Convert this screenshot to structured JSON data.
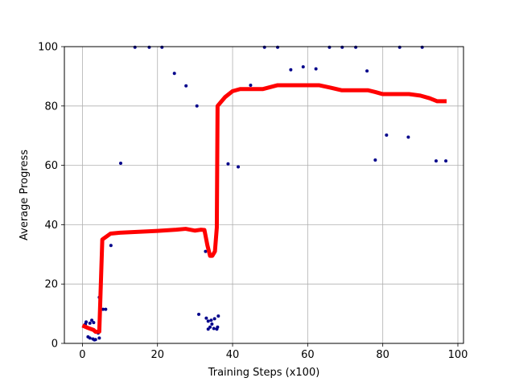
{
  "chart_data": {
    "type": "line",
    "xlabel": "Training Steps (x100)",
    "ylabel": "Average Progress",
    "xlim": [
      -4.8,
      101.5
    ],
    "ylim": [
      0,
      100
    ],
    "xticks": [
      0,
      20,
      40,
      60,
      80,
      100
    ],
    "yticks": [
      0,
      20,
      40,
      60,
      80,
      100
    ],
    "xtick_labels": [
      "0",
      "20",
      "40",
      "60",
      "80",
      "100"
    ],
    "ytick_labels": [
      "0",
      "20",
      "40",
      "60",
      "80",
      "100"
    ],
    "grid": true,
    "series": [
      {
        "style": "scatter",
        "color": "#00008b",
        "points": [
          [
            0.8,
            6.5
          ],
          [
            1.0,
            7.2
          ],
          [
            1.5,
            2.2
          ],
          [
            2.0,
            6.8
          ],
          [
            2.0,
            1.8
          ],
          [
            2.5,
            7.8
          ],
          [
            2.8,
            1.5
          ],
          [
            3.0,
            7.0
          ],
          [
            3.2,
            1.2
          ],
          [
            3.5,
            1.3
          ],
          [
            4.2,
            3.5
          ],
          [
            4.5,
            15.5
          ],
          [
            4.5,
            1.8
          ],
          [
            5.5,
            11.5
          ],
          [
            6.2,
            11.5
          ],
          [
            7.6,
            33.0
          ],
          [
            10.2,
            60.7
          ],
          [
            14.0,
            99.8
          ],
          [
            17.8,
            99.8
          ],
          [
            21.2,
            99.8
          ],
          [
            24.5,
            91.0
          ],
          [
            27.6,
            86.8
          ],
          [
            30.5,
            80.0
          ],
          [
            31.0,
            9.8
          ],
          [
            32.8,
            31.0
          ],
          [
            33.0,
            8.5
          ],
          [
            33.5,
            7.5
          ],
          [
            33.5,
            4.8
          ],
          [
            34.0,
            5.5
          ],
          [
            34.3,
            7.8
          ],
          [
            34.5,
            6.5
          ],
          [
            35.0,
            5.0
          ],
          [
            35.2,
            8.3
          ],
          [
            35.8,
            4.8
          ],
          [
            36.0,
            5.5
          ],
          [
            36.2,
            9.2
          ],
          [
            38.8,
            60.5
          ],
          [
            41.5,
            59.5
          ],
          [
            44.8,
            87.0
          ],
          [
            48.5,
            99.8
          ],
          [
            52.0,
            99.8
          ],
          [
            55.5,
            92.2
          ],
          [
            58.8,
            93.2
          ],
          [
            62.2,
            92.5
          ],
          [
            65.8,
            99.8
          ],
          [
            69.2,
            99.8
          ],
          [
            72.8,
            99.8
          ],
          [
            75.8,
            91.8
          ],
          [
            78.0,
            61.8
          ],
          [
            81.0,
            70.2
          ],
          [
            84.5,
            99.8
          ],
          [
            86.8,
            69.5
          ],
          [
            90.5,
            99.8
          ],
          [
            94.2,
            61.5
          ],
          [
            96.8,
            61.5
          ]
        ]
      },
      {
        "style": "line",
        "color": "#ff0000",
        "points": [
          [
            0.0,
            6.0
          ],
          [
            1.5,
            5.2
          ],
          [
            3.0,
            4.5
          ],
          [
            3.5,
            3.9
          ],
          [
            4.5,
            4.0
          ],
          [
            5.3,
            35.0
          ],
          [
            7.5,
            37.0
          ],
          [
            10.0,
            37.3
          ],
          [
            15.0,
            37.6
          ],
          [
            20.0,
            37.9
          ],
          [
            25.0,
            38.3
          ],
          [
            27.5,
            38.6
          ],
          [
            30.0,
            38.0
          ],
          [
            31.5,
            38.3
          ],
          [
            32.5,
            38.2
          ],
          [
            33.3,
            33.0
          ],
          [
            34.0,
            29.5
          ],
          [
            34.6,
            29.5
          ],
          [
            35.3,
            31.0
          ],
          [
            35.8,
            39.0
          ],
          [
            36.0,
            80.0
          ],
          [
            38.0,
            83.0
          ],
          [
            40.0,
            85.0
          ],
          [
            42.0,
            85.7
          ],
          [
            45.0,
            85.7
          ],
          [
            48.0,
            85.7
          ],
          [
            52.0,
            87.0
          ],
          [
            56.0,
            87.0
          ],
          [
            59.0,
            87.0
          ],
          [
            63.0,
            87.0
          ],
          [
            66.0,
            86.2
          ],
          [
            69.0,
            85.3
          ],
          [
            72.5,
            85.3
          ],
          [
            76.0,
            85.3
          ],
          [
            78.0,
            84.7
          ],
          [
            80.0,
            84.0
          ],
          [
            84.0,
            84.0
          ],
          [
            87.0,
            84.0
          ],
          [
            90.0,
            83.5
          ],
          [
            92.5,
            82.6
          ],
          [
            94.5,
            81.6
          ],
          [
            96.0,
            81.6
          ],
          [
            97.0,
            81.6
          ]
        ]
      }
    ]
  }
}
